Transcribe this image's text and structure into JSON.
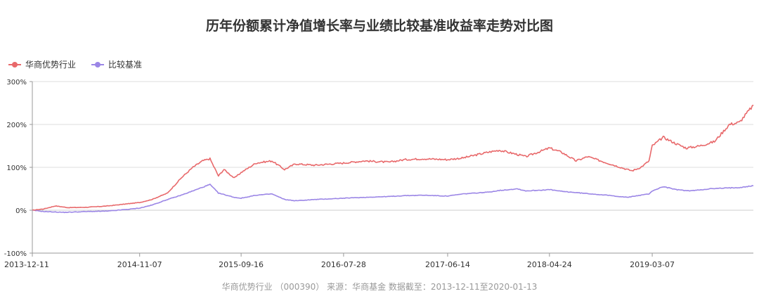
{
  "title": "历年份额累计净值增长率与业绩比较基准收益率走势对比图",
  "footer": "华商优势行业 （000390） 来源：华商基金 数据截至：2013-12-11至2020-01-13",
  "colors": {
    "fund": "#e8696b",
    "benchmark": "#9b86e6",
    "grid": "#dcdcdc",
    "axis": "#999999"
  },
  "chart_data": {
    "type": "line",
    "title": "历年份额累计净值增长率与业绩比较基准收益率走势对比图",
    "x_ticks": [
      "2013-12-11",
      "2014-11-07",
      "2015-09-16",
      "2016-07-28",
      "2017-06-14",
      "2018-04-24",
      "2019-03-07"
    ],
    "y_ticks": [
      "300%",
      "200%",
      "100%",
      "0%",
      "-100%"
    ],
    "ylim": [
      -100,
      300
    ],
    "y_unit": "%",
    "xlim": [
      "2013-12-11",
      "2020-01-13"
    ],
    "grid": "horizontal",
    "legend_position": "top-left",
    "series": [
      {
        "name": "华商优势行业",
        "x": [
          "2013-12-11",
          "2014-01-15",
          "2014-02-20",
          "2014-04-01",
          "2014-06-01",
          "2014-08-01",
          "2014-10-01",
          "2014-11-07",
          "2014-12-15",
          "2015-02-01",
          "2015-03-15",
          "2015-04-20",
          "2015-05-20",
          "2015-06-12",
          "2015-07-08",
          "2015-07-25",
          "2015-08-26",
          "2015-09-16",
          "2015-11-01",
          "2015-12-20",
          "2016-01-28",
          "2016-03-01",
          "2016-05-01",
          "2016-07-28",
          "2016-10-01",
          "2016-12-15",
          "2017-02-01",
          "2017-04-01",
          "2017-06-14",
          "2017-08-01",
          "2017-10-15",
          "2017-11-20",
          "2018-01-15",
          "2018-02-10",
          "2018-04-24",
          "2018-06-01",
          "2018-07-15",
          "2018-08-20",
          "2018-10-19",
          "2018-12-20",
          "2019-01-04",
          "2019-01-31",
          "2019-02-25",
          "2019-03-07",
          "2019-04-10",
          "2019-05-20",
          "2019-06-20",
          "2019-08-01",
          "2019-09-15",
          "2019-10-31",
          "2019-12-01",
          "2020-01-13"
        ],
        "y": [
          0,
          3,
          10,
          6,
          7,
          10,
          15,
          18,
          25,
          40,
          75,
          100,
          115,
          120,
          80,
          95,
          75,
          88,
          110,
          115,
          95,
          108,
          105,
          110,
          115,
          112,
          118,
          120,
          118,
          122,
          135,
          140,
          130,
          125,
          145,
          135,
          115,
          125,
          110,
          95,
          92,
          100,
          115,
          150,
          170,
          155,
          145,
          150,
          160,
          200,
          205,
          245
        ]
      },
      {
        "name": "比较基准",
        "x": [
          "2013-12-11",
          "2014-01-15",
          "2014-03-20",
          "2014-06-01",
          "2014-08-01",
          "2014-10-01",
          "2014-11-07",
          "2014-12-15",
          "2015-02-01",
          "2015-03-15",
          "2015-04-20",
          "2015-06-12",
          "2015-07-08",
          "2015-08-26",
          "2015-09-16",
          "2015-11-01",
          "2015-12-20",
          "2016-01-28",
          "2016-03-01",
          "2016-05-01",
          "2016-07-28",
          "2016-10-01",
          "2016-12-15",
          "2017-02-01",
          "2017-04-01",
          "2017-06-14",
          "2017-08-01",
          "2017-10-15",
          "2017-11-20",
          "2018-01-15",
          "2018-02-10",
          "2018-04-24",
          "2018-06-01",
          "2018-08-01",
          "2018-10-19",
          "2018-12-20",
          "2019-01-04",
          "2019-02-25",
          "2019-03-07",
          "2019-04-10",
          "2019-05-20",
          "2019-07-01",
          "2019-09-01",
          "2019-10-31",
          "2019-12-01",
          "2020-01-13"
        ],
        "y": [
          0,
          -3,
          -5,
          -3,
          -2,
          2,
          5,
          12,
          25,
          35,
          45,
          60,
          40,
          30,
          28,
          35,
          38,
          25,
          22,
          25,
          28,
          30,
          32,
          34,
          35,
          33,
          38,
          42,
          46,
          50,
          45,
          48,
          44,
          40,
          35,
          30,
          32,
          38,
          45,
          55,
          48,
          45,
          50,
          52,
          53,
          57
        ]
      }
    ]
  }
}
